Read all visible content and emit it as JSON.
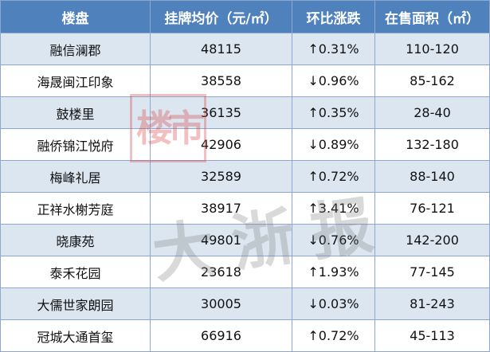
{
  "headers": [
    "楼盘",
    "挂牌均价（元/㎡）",
    "环比涨跌",
    "在售面积（㎡）"
  ],
  "rows": [
    {
      "name": "融信澜郡",
      "price": "48115",
      "arrow": "↑",
      "change": "0.31%",
      "dir": "up",
      "area": "110-120"
    },
    {
      "name": "海晟闽江印象",
      "price": "38558",
      "arrow": "↓",
      "change": "0.96%",
      "dir": "down",
      "area": "85-162"
    },
    {
      "name": "鼓楼里",
      "price": "36135",
      "arrow": "↑",
      "change": "0.35%",
      "dir": "up",
      "area": "28-40"
    },
    {
      "name": "融侨锦江悦府",
      "price": "42906",
      "arrow": "↓",
      "change": "0.89%",
      "dir": "down",
      "area": "132-180"
    },
    {
      "name": "梅峰礼居",
      "price": "32589",
      "arrow": "↑",
      "change": "0.72%",
      "dir": "up",
      "area": "88-140"
    },
    {
      "name": "正祥水榭芳庭",
      "price": "38917",
      "arrow": "↑",
      "change": "3.41%",
      "dir": "up",
      "area": "76-121"
    },
    {
      "name": "晓康苑",
      "price": "49801",
      "arrow": "↓",
      "change": "0.76%",
      "dir": "down",
      "area": "142-200"
    },
    {
      "name": "泰禾花园",
      "price": "23618",
      "arrow": "↑",
      "change": "1.93%",
      "dir": "up",
      "area": "77-145"
    },
    {
      "name": "大儒世家朗园",
      "price": "30005",
      "arrow": "↓",
      "change": "0.03%",
      "dir": "down",
      "area": "81-243"
    },
    {
      "name": "冠城大通首玺",
      "price": "66916",
      "arrow": "↑",
      "change": "0.72%",
      "dir": "up",
      "area": "45-113"
    }
  ],
  "watermark": {
    "box_text": "楼市",
    "text": "大浙报"
  },
  "colors": {
    "header_bg": "#4f81bd",
    "row_shade": "#dce6f1",
    "up": "#e0211b",
    "down": "#12a64a"
  }
}
